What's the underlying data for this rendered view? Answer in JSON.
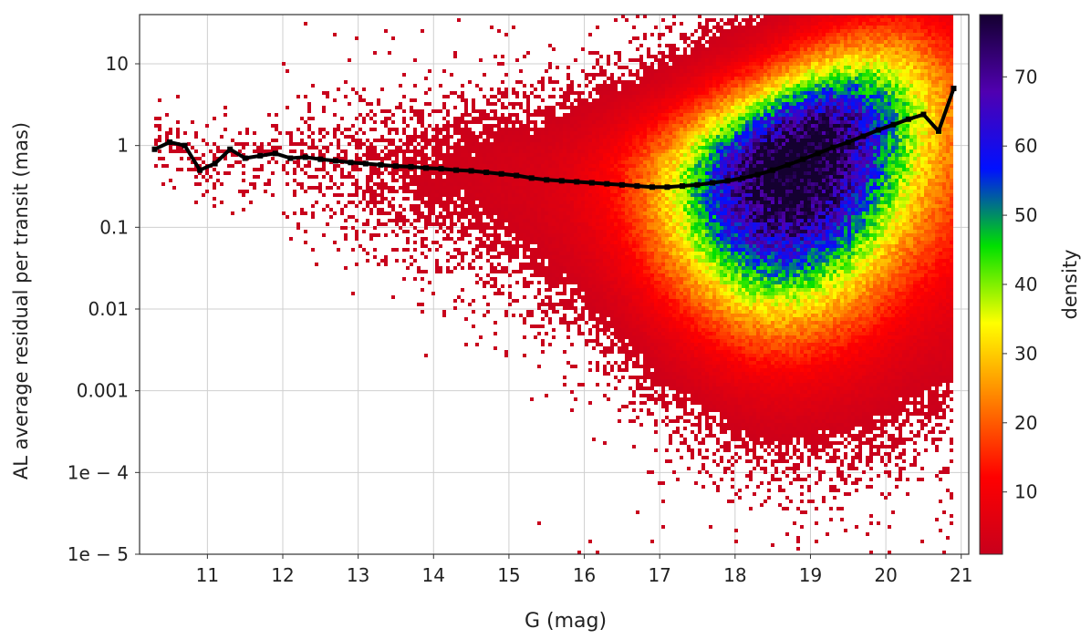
{
  "chart_data": {
    "type": "heatmap",
    "xlabel": "G (mag)",
    "ylabel": "AL average residual per transit (mas)",
    "colorbar_label": "density",
    "xlim": [
      10.1,
      21.1
    ],
    "ylim": [
      1e-05,
      40
    ],
    "y_scale": "log",
    "grid": true,
    "x_ticks": [
      {
        "v": 11,
        "label": "11"
      },
      {
        "v": 12,
        "label": "12"
      },
      {
        "v": 13,
        "label": "13"
      },
      {
        "v": 14,
        "label": "14"
      },
      {
        "v": 15,
        "label": "15"
      },
      {
        "v": 16,
        "label": "16"
      },
      {
        "v": 17,
        "label": "17"
      },
      {
        "v": 18,
        "label": "18"
      },
      {
        "v": 19,
        "label": "19"
      },
      {
        "v": 20,
        "label": "20"
      },
      {
        "v": 21,
        "label": "21"
      }
    ],
    "y_ticks": [
      {
        "v": 10,
        "label": "10"
      },
      {
        "v": 1,
        "label": "1"
      },
      {
        "v": 0.1,
        "label": "0.1"
      },
      {
        "v": 0.01,
        "label": "0.01"
      },
      {
        "v": 0.001,
        "label": "0.001"
      },
      {
        "v": 0.0001,
        "label": "1e − 4"
      },
      {
        "v": 1e-05,
        "label": "1e − 5"
      }
    ],
    "colorbar": {
      "range": [
        1,
        79
      ],
      "ticks": [
        {
          "v": 10,
          "label": "10"
        },
        {
          "v": 20,
          "label": "20"
        },
        {
          "v": 30,
          "label": "30"
        },
        {
          "v": 40,
          "label": "40"
        },
        {
          "v": 50,
          "label": "50"
        },
        {
          "v": 60,
          "label": "60"
        },
        {
          "v": 70,
          "label": "70"
        }
      ],
      "colormap": [
        "#c8001c",
        "#ff0000",
        "#ff8000",
        "#ffff00",
        "#00e000",
        "#0010ff",
        "#5000b0",
        "#140030"
      ]
    },
    "median_series": {
      "name": "median",
      "color": "#000000",
      "x": [
        10.3,
        10.5,
        10.7,
        10.9,
        11.1,
        11.3,
        11.5,
        11.7,
        11.9,
        12.1,
        12.3,
        12.5,
        12.7,
        12.9,
        13.1,
        13.3,
        13.5,
        13.7,
        13.9,
        14.1,
        14.3,
        14.5,
        14.7,
        14.9,
        15.1,
        15.3,
        15.5,
        15.7,
        15.9,
        16.1,
        16.3,
        16.5,
        16.7,
        16.9,
        17.1,
        17.3,
        17.5,
        17.7,
        17.9,
        18.1,
        18.3,
        18.5,
        18.7,
        18.9,
        19.1,
        19.3,
        19.5,
        19.7,
        19.9,
        20.1,
        20.3,
        20.5,
        20.7,
        20.9
      ],
      "y": [
        0.9,
        1.1,
        1.0,
        0.5,
        0.6,
        0.9,
        0.7,
        0.75,
        0.8,
        0.7,
        0.72,
        0.68,
        0.65,
        0.62,
        0.6,
        0.58,
        0.56,
        0.55,
        0.53,
        0.52,
        0.5,
        0.49,
        0.47,
        0.45,
        0.43,
        0.4,
        0.38,
        0.37,
        0.36,
        0.35,
        0.34,
        0.33,
        0.32,
        0.31,
        0.31,
        0.32,
        0.33,
        0.35,
        0.37,
        0.4,
        0.44,
        0.5,
        0.58,
        0.68,
        0.8,
        0.95,
        1.1,
        1.3,
        1.55,
        1.8,
        2.1,
        2.4,
        1.5,
        5.0
      ]
    }
  }
}
